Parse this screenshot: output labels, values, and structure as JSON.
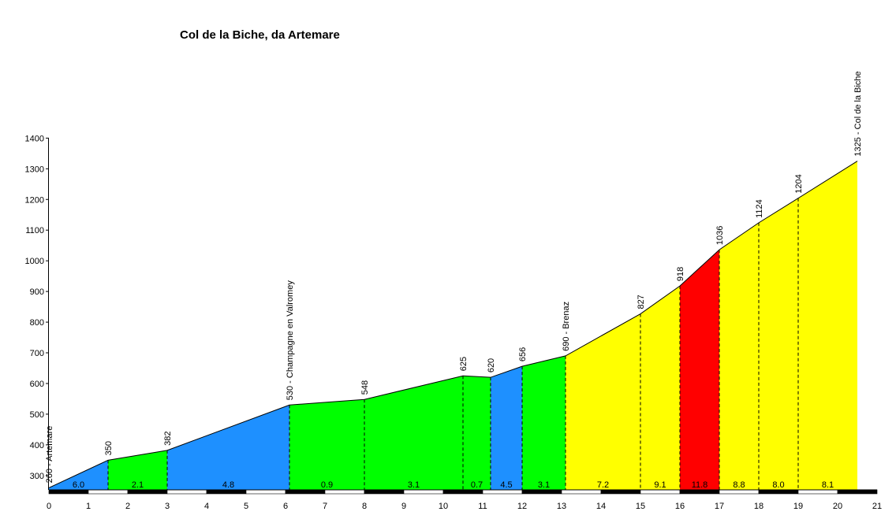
{
  "chart_data": {
    "type": "area",
    "title": "Col de la Biche, da Artemare",
    "xlabel": "",
    "ylabel": "",
    "xlim": [
      0,
      21
    ],
    "ylim": [
      240,
      1400
    ],
    "x_ticks": [
      0,
      1,
      2,
      3,
      4,
      5,
      6,
      7,
      8,
      9,
      10,
      11,
      12,
      13,
      14,
      15,
      16,
      17,
      18,
      19,
      20,
      21
    ],
    "y_ticks": [
      300,
      400,
      500,
      600,
      700,
      800,
      900,
      1000,
      1100,
      1200,
      1300,
      1400
    ],
    "grid": false,
    "points": [
      {
        "x": 0.0,
        "y": 260,
        "label": "260 - Artemare"
      },
      {
        "x": 1.5,
        "y": 350,
        "label": "350"
      },
      {
        "x": 3.0,
        "y": 382,
        "label": "382"
      },
      {
        "x": 6.1,
        "y": 530,
        "label": "530 - Champagne en Valromey"
      },
      {
        "x": 8.0,
        "y": 548,
        "label": "548"
      },
      {
        "x": 10.5,
        "y": 625,
        "label": "625"
      },
      {
        "x": 11.2,
        "y": 620,
        "label": "620"
      },
      {
        "x": 12.0,
        "y": 656,
        "label": "656"
      },
      {
        "x": 13.1,
        "y": 690,
        "label": "690 - Brenaz"
      },
      {
        "x": 15.0,
        "y": 827,
        "label": "827"
      },
      {
        "x": 16.0,
        "y": 918,
        "label": "918"
      },
      {
        "x": 17.0,
        "y": 1036,
        "label": "1036"
      },
      {
        "x": 18.0,
        "y": 1124,
        "label": "1124"
      },
      {
        "x": 19.0,
        "y": 1204,
        "label": "1204"
      },
      {
        "x": 20.5,
        "y": 1325,
        "label": "1325 - Col de la Biche"
      }
    ],
    "segments": [
      {
        "gradient": "6.0",
        "color": "#1e90ff"
      },
      {
        "gradient": "2.1",
        "color": "#00ff00"
      },
      {
        "gradient": "4.8",
        "color": "#1e90ff"
      },
      {
        "gradient": "0.9",
        "color": "#00ff00"
      },
      {
        "gradient": "3.1",
        "color": "#00ff00"
      },
      {
        "gradient": "0.7",
        "color": "#00ff00"
      },
      {
        "gradient": "4.5",
        "color": "#1e90ff"
      },
      {
        "gradient": "3.1",
        "color": "#00ff00"
      },
      {
        "gradient": "7.2",
        "color": "#ffff00"
      },
      {
        "gradient": "9.1",
        "color": "#ffff00"
      },
      {
        "gradient": "11.8",
        "color": "#ff0000"
      },
      {
        "gradient": "8.8",
        "color": "#ffff00"
      },
      {
        "gradient": "8.0",
        "color": "#ffff00"
      },
      {
        "gradient": "8.1",
        "color": "#ffff00"
      }
    ]
  }
}
